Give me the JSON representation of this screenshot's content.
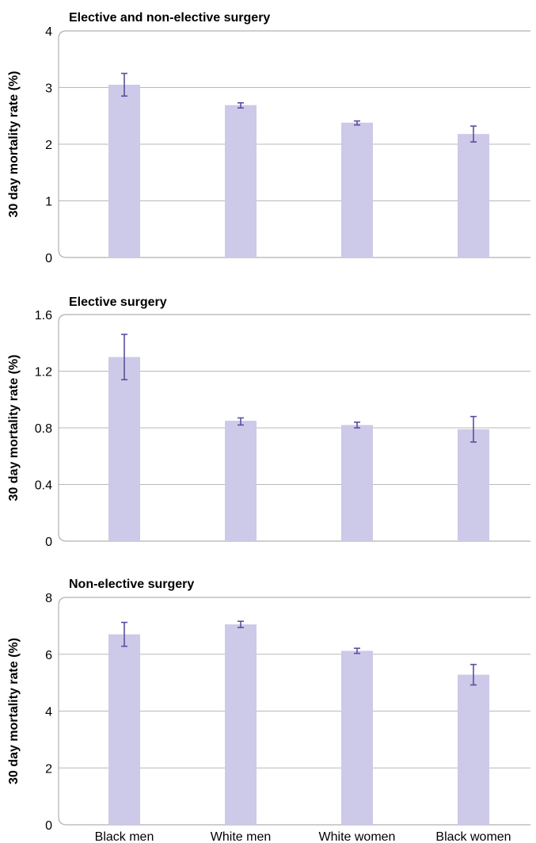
{
  "colors": {
    "bar": "#cdc9e8",
    "error_bar": "#5b4f9c"
  },
  "chart_data": [
    {
      "type": "bar",
      "title": "Elective and non-elective surgery",
      "ylabel": "30 day mortality rate (%)",
      "xlabel": "",
      "categories": [
        "Black men",
        "White men",
        "White women",
        "Black women"
      ],
      "values": [
        3.05,
        2.69,
        2.38,
        2.18
      ],
      "error_low": [
        2.85,
        2.64,
        2.34,
        2.04
      ],
      "error_high": [
        3.25,
        2.73,
        2.41,
        2.32
      ],
      "ylim": [
        0,
        4
      ],
      "yticks": [
        0,
        1,
        2,
        3,
        4
      ],
      "ytick_labels": [
        "0",
        "1",
        "2",
        "3",
        "4"
      ],
      "show_category_labels": false
    },
    {
      "type": "bar",
      "title": "Elective surgery",
      "ylabel": "30 day mortality rate (%)",
      "xlabel": "",
      "categories": [
        "Black men",
        "White men",
        "White women",
        "Black women"
      ],
      "values": [
        1.3,
        0.85,
        0.82,
        0.79
      ],
      "error_low": [
        1.14,
        0.82,
        0.8,
        0.7
      ],
      "error_high": [
        1.46,
        0.87,
        0.84,
        0.88
      ],
      "ylim": [
        0,
        1.6
      ],
      "yticks": [
        0,
        0.4,
        0.8,
        1.2,
        1.6
      ],
      "ytick_labels": [
        "0",
        "0.4",
        "0.8",
        "1.2",
        "1.6"
      ],
      "show_category_labels": false
    },
    {
      "type": "bar",
      "title": "Non-elective surgery",
      "ylabel": "30 day mortality rate (%)",
      "xlabel": "",
      "categories": [
        "Black men",
        "White men",
        "White women",
        "Black women"
      ],
      "values": [
        6.7,
        7.05,
        6.12,
        5.28
      ],
      "error_low": [
        6.28,
        6.94,
        6.03,
        4.92
      ],
      "error_high": [
        7.12,
        7.16,
        6.21,
        5.64
      ],
      "ylim": [
        0,
        8
      ],
      "yticks": [
        0,
        2,
        4,
        6,
        8
      ],
      "ytick_labels": [
        "0",
        "2",
        "4",
        "6",
        "8"
      ],
      "show_category_labels": true
    }
  ]
}
